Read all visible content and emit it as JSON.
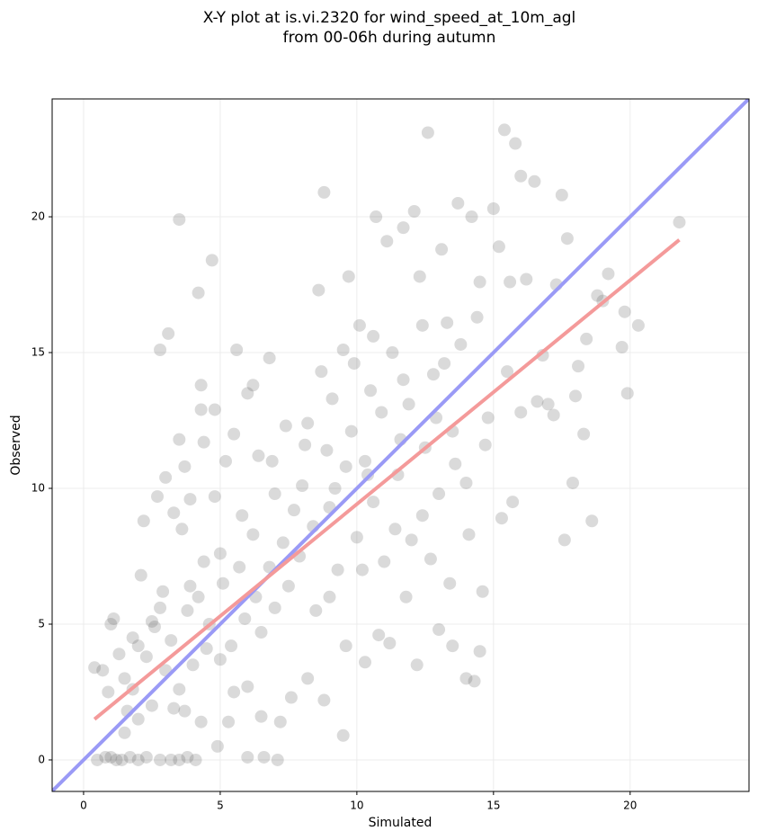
{
  "chart_data": {
    "type": "scatter",
    "title": [
      "X-Y plot at is.vi.2320 for wind_speed_at_10m_agl",
      "from 00-06h during autumn"
    ],
    "x_label": "Simulated",
    "y_label": "Observed",
    "xlim": [
      -1.15,
      24.35
    ],
    "ylim": [
      -1.16,
      24.34
    ],
    "xticks": [
      0,
      5,
      10,
      15,
      20
    ],
    "yticks": [
      0,
      5,
      10,
      15,
      20
    ],
    "grid": true,
    "point_color": "#555555",
    "lines": [
      {
        "color": "#9a9af6",
        "x": [
          -1.15,
          24.35
        ],
        "y": [
          -1.15,
          24.35
        ]
      },
      {
        "color": "#f49a9a",
        "x": [
          0.4,
          21.8
        ],
        "y": [
          1.5,
          19.15
        ]
      }
    ],
    "points": [
      [
        0.4,
        3.4
      ],
      [
        0.5,
        0
      ],
      [
        0.8,
        0.1
      ],
      [
        1.0,
        0.1
      ],
      [
        1.2,
        0
      ],
      [
        1.4,
        0
      ],
      [
        1.7,
        0.1
      ],
      [
        2.0,
        0
      ],
      [
        2.3,
        0.1
      ],
      [
        2.8,
        0
      ],
      [
        3.2,
        0
      ],
      [
        3.5,
        0
      ],
      [
        3.8,
        0.1
      ],
      [
        4.1,
        0
      ],
      [
        0.7,
        3.3
      ],
      [
        1.0,
        5.0
      ],
      [
        1.1,
        5.2
      ],
      [
        0.9,
        2.5
      ],
      [
        1.3,
        3.9
      ],
      [
        1.5,
        3.0
      ],
      [
        1.6,
        1.8
      ],
      [
        1.8,
        2.6
      ],
      [
        2.0,
        4.2
      ],
      [
        2.1,
        6.8
      ],
      [
        2.2,
        8.8
      ],
      [
        2.5,
        5.1
      ],
      [
        2.7,
        9.7
      ],
      [
        2.8,
        15.1
      ],
      [
        2.9,
        6.2
      ],
      [
        3.1,
        15.7
      ],
      [
        3.0,
        10.4
      ],
      [
        3.3,
        9.1
      ],
      [
        3.5,
        11.8
      ],
      [
        3.5,
        19.9
      ],
      [
        3.7,
        10.8
      ],
      [
        3.6,
        8.5
      ],
      [
        3.9,
        9.6
      ],
      [
        4.2,
        17.2
      ],
      [
        4.3,
        13.8
      ],
      [
        4.3,
        12.9
      ],
      [
        4.4,
        11.7
      ],
      [
        4.7,
        18.4
      ],
      [
        4.8,
        12.9
      ],
      [
        4.8,
        9.7
      ],
      [
        5.0,
        7.6
      ],
      [
        5.2,
        11.0
      ],
      [
        5.5,
        12.0
      ],
      [
        5.6,
        15.1
      ],
      [
        5.8,
        9.0
      ],
      [
        6.0,
        13.5
      ],
      [
        6.2,
        13.8
      ],
      [
        6.4,
        11.2
      ],
      [
        6.8,
        14.8
      ],
      [
        6.6,
        0.1
      ],
      [
        7.1,
        0
      ],
      [
        6.0,
        0.1
      ],
      [
        5.5,
        2.5
      ],
      [
        5.0,
        3.7
      ],
      [
        4.5,
        4.1
      ],
      [
        4.0,
        3.5
      ],
      [
        3.5,
        2.6
      ],
      [
        3.0,
        3.3
      ],
      [
        2.5,
        2.0
      ],
      [
        2.0,
        1.5
      ],
      [
        1.5,
        1.0
      ],
      [
        1.8,
        4.5
      ],
      [
        2.3,
        3.8
      ],
      [
        2.6,
        4.9
      ],
      [
        3.2,
        4.4
      ],
      [
        3.8,
        5.5
      ],
      [
        4.2,
        6.0
      ],
      [
        4.6,
        5.0
      ],
      [
        5.1,
        6.5
      ],
      [
        5.4,
        4.2
      ],
      [
        5.9,
        5.2
      ],
      [
        6.3,
        6.0
      ],
      [
        6.5,
        4.7
      ],
      [
        6.8,
        7.1
      ],
      [
        7.0,
        5.6
      ],
      [
        7.3,
        8.0
      ],
      [
        7.5,
        6.4
      ],
      [
        7.7,
        9.2
      ],
      [
        7.9,
        7.5
      ],
      [
        8.0,
        10.1
      ],
      [
        8.2,
        12.4
      ],
      [
        8.4,
        8.6
      ],
      [
        8.6,
        17.3
      ],
      [
        8.8,
        20.9
      ],
      [
        8.9,
        11.4
      ],
      [
        9.0,
        9.3
      ],
      [
        9.1,
        13.3
      ],
      [
        9.3,
        7.0
      ],
      [
        9.5,
        15.1
      ],
      [
        9.6,
        10.8
      ],
      [
        9.8,
        12.1
      ],
      [
        9.9,
        14.6
      ],
      [
        10.0,
        8.2
      ],
      [
        10.1,
        16.0
      ],
      [
        10.3,
        11.0
      ],
      [
        10.5,
        13.6
      ],
      [
        10.6,
        9.5
      ],
      [
        10.7,
        20.0
      ],
      [
        10.9,
        12.8
      ],
      [
        11.0,
        7.3
      ],
      [
        11.1,
        19.1
      ],
      [
        11.3,
        15.0
      ],
      [
        11.5,
        10.5
      ],
      [
        11.7,
        19.6
      ],
      [
        11.9,
        13.1
      ],
      [
        12.0,
        8.1
      ],
      [
        12.1,
        20.2
      ],
      [
        12.3,
        17.8
      ],
      [
        12.5,
        11.5
      ],
      [
        12.6,
        23.1
      ],
      [
        12.8,
        14.2
      ],
      [
        13.0,
        9.8
      ],
      [
        13.1,
        18.8
      ],
      [
        13.3,
        16.1
      ],
      [
        13.5,
        12.1
      ],
      [
        13.7,
        20.5
      ],
      [
        13.8,
        15.3
      ],
      [
        14.0,
        10.2
      ],
      [
        14.2,
        20.0
      ],
      [
        14.5,
        17.6
      ],
      [
        14.7,
        11.6
      ],
      [
        15.0,
        20.3
      ],
      [
        15.2,
        18.9
      ],
      [
        15.4,
        23.2
      ],
      [
        15.6,
        17.6
      ],
      [
        15.8,
        22.7
      ],
      [
        16.0,
        21.5
      ],
      [
        16.2,
        17.7
      ],
      [
        16.5,
        21.3
      ],
      [
        16.8,
        14.9
      ],
      [
        17.0,
        13.1
      ],
      [
        17.3,
        17.5
      ],
      [
        17.5,
        20.8
      ],
      [
        17.7,
        19.2
      ],
      [
        17.9,
        10.2
      ],
      [
        18.1,
        14.5
      ],
      [
        18.3,
        12.0
      ],
      [
        18.6,
        8.8
      ],
      [
        18.8,
        17.1
      ],
      [
        19.2,
        17.9
      ],
      [
        19.8,
        16.5
      ],
      [
        19.9,
        13.5
      ],
      [
        20.3,
        16.0
      ],
      [
        21.8,
        19.8
      ],
      [
        15.7,
        9.5
      ],
      [
        17.6,
        8.1
      ],
      [
        14.6,
        6.2
      ],
      [
        14.5,
        4.0
      ],
      [
        14.3,
        2.9
      ],
      [
        14.0,
        3.0
      ],
      [
        13.5,
        4.2
      ],
      [
        13.0,
        4.8
      ],
      [
        12.2,
        3.5
      ],
      [
        11.2,
        4.3
      ],
      [
        10.3,
        3.6
      ],
      [
        9.5,
        0.9
      ],
      [
        9.6,
        4.2
      ],
      [
        8.8,
        2.2
      ],
      [
        8.2,
        3.0
      ],
      [
        7.6,
        2.3
      ],
      [
        7.2,
        1.4
      ],
      [
        6.5,
        1.6
      ],
      [
        6.0,
        2.7
      ],
      [
        5.3,
        1.4
      ],
      [
        4.9,
        0.5
      ],
      [
        4.3,
        1.4
      ],
      [
        3.7,
        1.8
      ],
      [
        3.3,
        1.9
      ],
      [
        10.8,
        4.6
      ],
      [
        11.8,
        6.0
      ],
      [
        12.7,
        7.4
      ],
      [
        13.4,
        6.5
      ],
      [
        14.1,
        8.3
      ],
      [
        15.3,
        8.9
      ],
      [
        16.0,
        12.8
      ],
      [
        16.6,
        13.2
      ],
      [
        17.2,
        12.7
      ],
      [
        18.0,
        13.4
      ],
      [
        18.4,
        15.5
      ],
      [
        19.0,
        16.9
      ],
      [
        19.7,
        15.2
      ],
      [
        8.5,
        5.5
      ],
      [
        9.0,
        6.0
      ],
      [
        10.2,
        7.0
      ],
      [
        11.4,
        8.5
      ],
      [
        12.4,
        9.0
      ],
      [
        13.6,
        10.9
      ],
      [
        14.8,
        12.6
      ],
      [
        15.5,
        14.3
      ],
      [
        7.0,
        9.8
      ],
      [
        6.2,
        8.3
      ],
      [
        5.7,
        7.1
      ],
      [
        4.4,
        7.3
      ],
      [
        3.9,
        6.4
      ],
      [
        2.8,
        5.6
      ],
      [
        6.9,
        11.0
      ],
      [
        7.4,
        12.3
      ],
      [
        8.1,
        11.6
      ],
      [
        9.2,
        10.0
      ],
      [
        10.4,
        10.5
      ],
      [
        11.6,
        11.8
      ],
      [
        12.9,
        12.6
      ],
      [
        8.7,
        14.3
      ],
      [
        9.7,
        17.8
      ],
      [
        10.6,
        15.6
      ],
      [
        11.7,
        14.0
      ],
      [
        12.4,
        16.0
      ],
      [
        13.2,
        14.6
      ],
      [
        14.4,
        16.3
      ]
    ]
  }
}
